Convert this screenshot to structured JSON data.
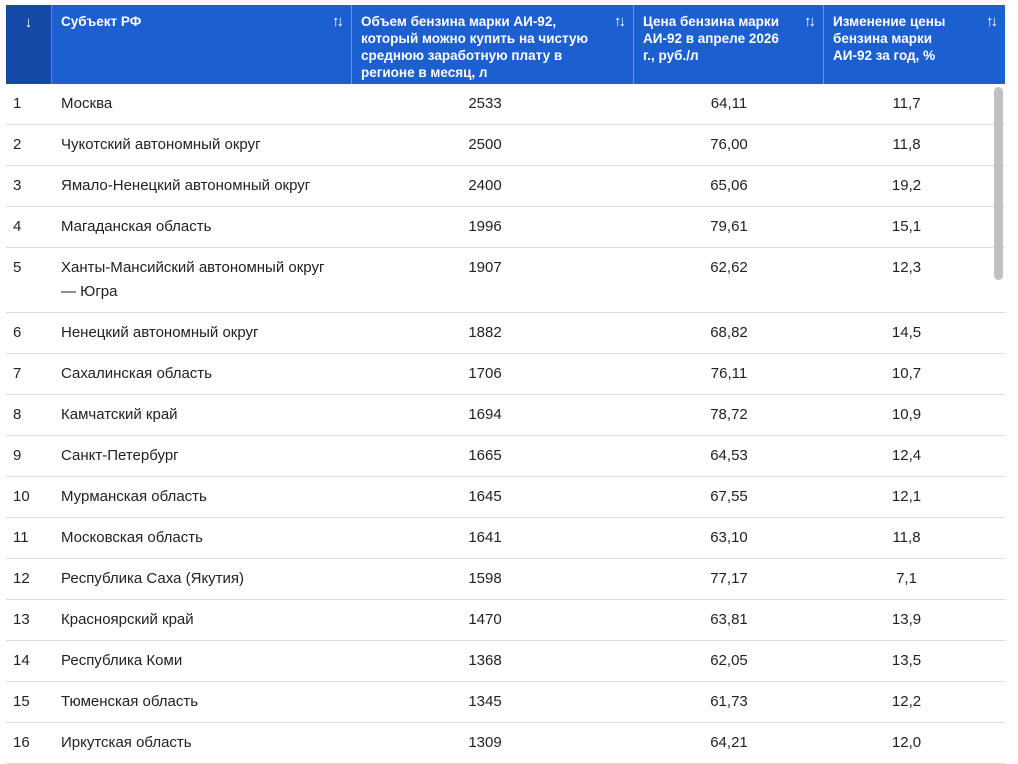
{
  "header": {
    "num_sort_icon": "↓",
    "col_subject": "Субъект РФ",
    "col_volume": "Объем бензина марки АИ-92, который можно купить на чистую среднюю заработную плату в регионе в месяц, л",
    "col_price": "Цена бензина марки АИ-92 в апреле 2026 г., руб./л",
    "col_change": "Изменение цены бензина марки АИ-92 за год, %",
    "sort_icon": "↑↓"
  },
  "rows": [
    {
      "n": "1",
      "region": "Москва",
      "volume": "2533",
      "price": "64,11",
      "change": "11,7"
    },
    {
      "n": "2",
      "region": "Чукотский автономный округ",
      "volume": "2500",
      "price": "76,00",
      "change": "11,8"
    },
    {
      "n": "3",
      "region": "Ямало-Ненецкий автономный округ",
      "volume": "2400",
      "price": "65,06",
      "change": "19,2"
    },
    {
      "n": "4",
      "region": "Магаданская область",
      "volume": "1996",
      "price": "79,61",
      "change": "15,1"
    },
    {
      "n": "5",
      "region": "Ханты-Мансийский автономный округ — Югра",
      "volume": "1907",
      "price": "62,62",
      "change": "12,3"
    },
    {
      "n": "6",
      "region": "Ненецкий автономный округ",
      "volume": "1882",
      "price": "68,82",
      "change": "14,5"
    },
    {
      "n": "7",
      "region": "Сахалинская область",
      "volume": "1706",
      "price": "76,11",
      "change": "10,7"
    },
    {
      "n": "8",
      "region": "Камчатский край",
      "volume": "1694",
      "price": "78,72",
      "change": "10,9"
    },
    {
      "n": "9",
      "region": "Санкт-Петербург",
      "volume": "1665",
      "price": "64,53",
      "change": "12,4"
    },
    {
      "n": "10",
      "region": "Мурманская область",
      "volume": "1645",
      "price": "67,55",
      "change": "12,1"
    },
    {
      "n": "11",
      "region": "Московская область",
      "volume": "1641",
      "price": "63,10",
      "change": "11,8"
    },
    {
      "n": "12",
      "region": "Республика Саха (Якутия)",
      "volume": "1598",
      "price": "77,17",
      "change": "7,1"
    },
    {
      "n": "13",
      "region": "Красноярский край",
      "volume": "1470",
      "price": "63,81",
      "change": "13,9"
    },
    {
      "n": "14",
      "region": "Республика Коми",
      "volume": "1368",
      "price": "62,05",
      "change": "13,5"
    },
    {
      "n": "15",
      "region": "Тюменская область",
      "volume": "1345",
      "price": "61,73",
      "change": "12,2"
    },
    {
      "n": "16",
      "region": "Иркутская область",
      "volume": "1309",
      "price": "64,21",
      "change": "12,0"
    }
  ]
}
